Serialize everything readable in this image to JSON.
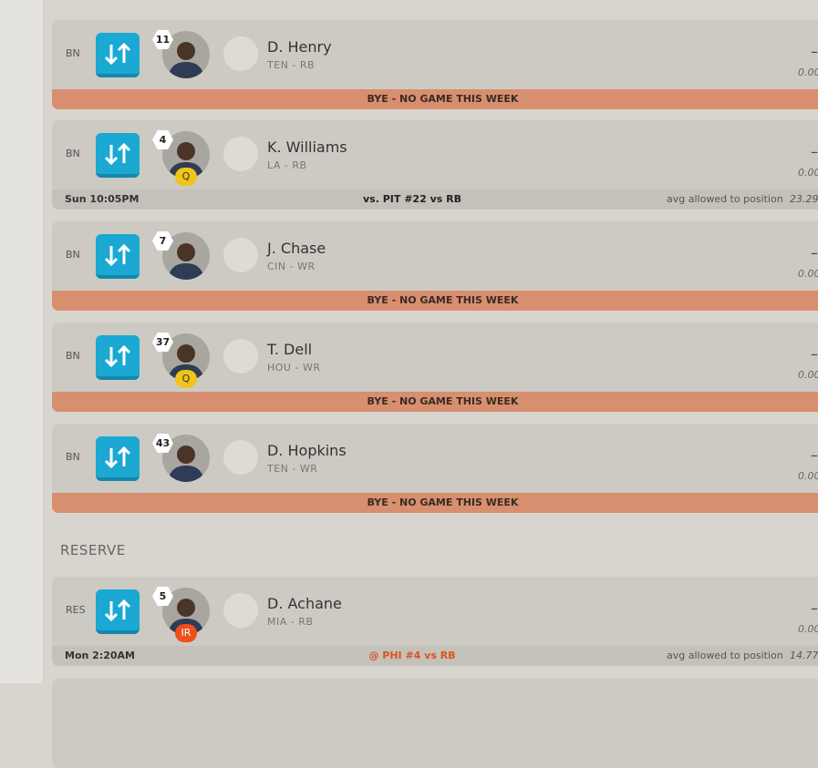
{
  "bench": [
    {
      "slot": "BN",
      "rank": 11,
      "name": "D. Henry",
      "team_pos": "TEN - RB",
      "score": "–",
      "points": "0.00",
      "bye": "BYE - NO GAME THIS WEEK"
    },
    {
      "slot": "BN",
      "rank": 4,
      "status": "Q",
      "name": "K. Williams",
      "team_pos": "LA - RB",
      "score": "–",
      "points": "0.00",
      "time": "Sun 10:05PM",
      "opponent": "vs. PIT #22 vs RB",
      "avg_label": "avg allowed to position",
      "avg": "23.29"
    },
    {
      "slot": "BN",
      "rank": 7,
      "name": "J. Chase",
      "team_pos": "CIN - WR",
      "score": "–",
      "points": "0.00",
      "bye": "BYE - NO GAME THIS WEEK"
    },
    {
      "slot": "BN",
      "rank": 37,
      "status": "Q",
      "name": "T. Dell",
      "team_pos": "HOU - WR",
      "score": "–",
      "points": "0.00",
      "bye": "BYE - NO GAME THIS WEEK"
    },
    {
      "slot": "BN",
      "rank": 43,
      "name": "D. Hopkins",
      "team_pos": "TEN - WR",
      "score": "–",
      "points": "0.00",
      "bye": "BYE - NO GAME THIS WEEK"
    }
  ],
  "reserve": {
    "title": "RESERVE",
    "players": [
      {
        "slot": "RES",
        "rank": 5,
        "status": "IR",
        "name": "D. Achane",
        "team_pos": "MIA - RB",
        "score": "–",
        "points": "0.00",
        "time": "Mon 2:20AM",
        "opponent": "@ PHI #4 vs RB",
        "avg_label": "avg allowed to position",
        "avg": "14.77"
      }
    ]
  }
}
